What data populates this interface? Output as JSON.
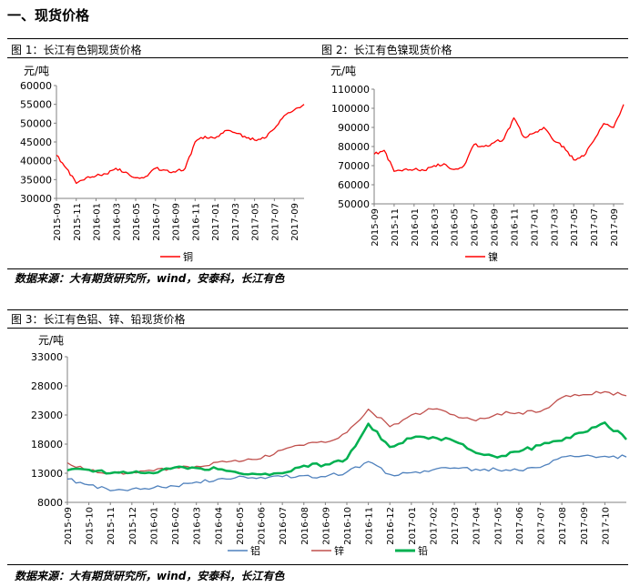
{
  "section_title": "一、现货价格",
  "source_note": "数据来源：大有期货研究所，wind，安泰科，长江有色",
  "chart_data": [
    {
      "type": "line",
      "title": "图 1：长江有色铜现货价格",
      "ylabel": "元/吨",
      "ylim": [
        30000,
        60000
      ],
      "yticks": [
        "30000",
        "35000",
        "40000",
        "45000",
        "50000",
        "55000",
        "60000"
      ],
      "xticks": [
        "2015-09",
        "2015-11",
        "2016-01",
        "2016-03",
        "2016-05",
        "2016-07",
        "2016-09",
        "2016-11",
        "2017-01",
        "2017-03",
        "2017-05",
        "2017-07",
        "2017-09"
      ],
      "x_start": "2015-09",
      "x_end": "2017-10",
      "legend_position": "bottom",
      "series": [
        {
          "name": "铜",
          "color": "#ff0000",
          "x": [
            "2015-09",
            "2015-10",
            "2015-11",
            "2015-12",
            "2016-01",
            "2016-02",
            "2016-03",
            "2016-04",
            "2016-05",
            "2016-06",
            "2016-07",
            "2016-08",
            "2016-09",
            "2016-10",
            "2016-11",
            "2016-12",
            "2017-01",
            "2017-02",
            "2017-03",
            "2017-04",
            "2017-05",
            "2017-06",
            "2017-07",
            "2017-08",
            "2017-09",
            "2017-10"
          ],
          "values": [
            41500,
            38000,
            34000,
            35500,
            36000,
            36500,
            38000,
            37000,
            35500,
            35800,
            38000,
            37500,
            37000,
            38000,
            45000,
            46500,
            46000,
            48000,
            47500,
            46500,
            45500,
            46000,
            48500,
            52000,
            53500,
            55000
          ]
        }
      ]
    },
    {
      "type": "line",
      "title": "图 2：长江有色镍现货价格",
      "ylabel": "元/吨",
      "ylim": [
        50000,
        110000
      ],
      "yticks": [
        "50000",
        "60000",
        "70000",
        "80000",
        "90000",
        "100000",
        "110000"
      ],
      "xticks": [
        "2015-09",
        "2015-11",
        "2016-01",
        "2016-03",
        "2016-05",
        "2016-07",
        "2016-09",
        "2016-11",
        "2017-01",
        "2017-03",
        "2017-05",
        "2017-07",
        "2017-09"
      ],
      "x_start": "2015-09",
      "x_end": "2017-10",
      "legend_position": "bottom",
      "series": [
        {
          "name": "镍",
          "color": "#ff0000",
          "x": [
            "2015-09",
            "2015-10",
            "2015-11",
            "2015-12",
            "2016-01",
            "2016-02",
            "2016-03",
            "2016-04",
            "2016-05",
            "2016-06",
            "2016-07",
            "2016-08",
            "2016-09",
            "2016-10",
            "2016-11",
            "2016-12",
            "2017-01",
            "2017-02",
            "2017-03",
            "2017-04",
            "2017-05",
            "2017-06",
            "2017-07",
            "2017-08",
            "2017-09",
            "2017-10"
          ],
          "values": [
            76000,
            78000,
            67000,
            68000,
            68000,
            67500,
            70000,
            71000,
            68000,
            70000,
            81000,
            80000,
            82000,
            84000,
            95000,
            85000,
            87000,
            90000,
            83000,
            80000,
            73000,
            75000,
            83000,
            92000,
            90000,
            102000
          ]
        }
      ]
    },
    {
      "type": "line",
      "title": "图 3：长江有色铝、锌、铅现货价格",
      "ylabel": "元/吨",
      "ylim": [
        8000,
        33000
      ],
      "yticks": [
        "8000",
        "13000",
        "18000",
        "23000",
        "28000",
        "33000"
      ],
      "xticks": [
        "2015-09",
        "2015-10",
        "2015-11",
        "2015-12",
        "2016-01",
        "2016-02",
        "2016-03",
        "2016-04",
        "2016-05",
        "2016-06",
        "2016-07",
        "2016-08",
        "2016-09",
        "2016-10",
        "2016-11",
        "2016-12",
        "2017-01",
        "2017-02",
        "2017-03",
        "2017-04",
        "2017-05",
        "2017-06",
        "2017-07",
        "2017-08",
        "2017-09",
        "2017-10"
      ],
      "x_start": "2015-09",
      "x_end": "2017-11",
      "legend_position": "bottom",
      "series": [
        {
          "name": "铝",
          "color": "#4f81bd",
          "x": [
            "2015-09",
            "2015-10",
            "2015-11",
            "2015-12",
            "2016-01",
            "2016-02",
            "2016-03",
            "2016-04",
            "2016-05",
            "2016-06",
            "2016-07",
            "2016-08",
            "2016-09",
            "2016-10",
            "2016-11",
            "2016-12",
            "2017-01",
            "2017-02",
            "2017-03",
            "2017-04",
            "2017-05",
            "2017-06",
            "2017-07",
            "2017-08",
            "2017-09",
            "2017-10",
            "2017-11"
          ],
          "values": [
            12000,
            11000,
            10000,
            10300,
            10500,
            10800,
            11500,
            12000,
            12500,
            12300,
            12400,
            12600,
            12400,
            13200,
            15000,
            12800,
            13100,
            13600,
            13900,
            13700,
            13600,
            13500,
            14000,
            15800,
            16000,
            15900,
            15800
          ]
        },
        {
          "name": "锌",
          "color": "#c0504d",
          "x": [
            "2015-09",
            "2015-10",
            "2015-11",
            "2015-12",
            "2016-01",
            "2016-02",
            "2016-03",
            "2016-04",
            "2016-05",
            "2016-06",
            "2016-07",
            "2016-08",
            "2016-09",
            "2016-10",
            "2016-11",
            "2016-12",
            "2017-01",
            "2017-02",
            "2017-03",
            "2017-04",
            "2017-05",
            "2017-06",
            "2017-07",
            "2017-08",
            "2017-09",
            "2017-10",
            "2017-11"
          ],
          "values": [
            14800,
            13500,
            13000,
            13200,
            13400,
            14000,
            14200,
            14900,
            15000,
            15500,
            17000,
            17800,
            18300,
            20000,
            24000,
            21000,
            23000,
            24000,
            23000,
            22000,
            23200,
            23400,
            23600,
            26000,
            26500,
            27000,
            26300
          ]
        },
        {
          "name": "铅",
          "color": "#00b050",
          "x": [
            "2015-09",
            "2015-10",
            "2015-11",
            "2015-12",
            "2016-01",
            "2016-02",
            "2016-03",
            "2016-04",
            "2016-05",
            "2016-06",
            "2016-07",
            "2016-08",
            "2016-09",
            "2016-10",
            "2016-11",
            "2016-12",
            "2017-01",
            "2017-02",
            "2017-03",
            "2017-04",
            "2017-05",
            "2017-06",
            "2017-07",
            "2017-08",
            "2017-09",
            "2017-10",
            "2017-11"
          ],
          "values": [
            13500,
            13600,
            13000,
            13100,
            13000,
            14000,
            13900,
            13700,
            13000,
            12800,
            13000,
            14300,
            14500,
            15500,
            21500,
            17500,
            19000,
            19200,
            18500,
            16500,
            15700,
            16700,
            17800,
            18600,
            20000,
            21700,
            18800
          ]
        }
      ]
    }
  ]
}
